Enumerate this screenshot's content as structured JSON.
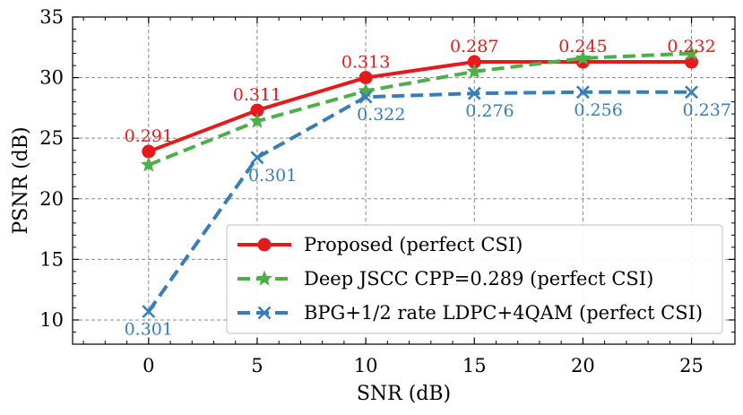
{
  "chart_data": {
    "type": "line",
    "title": "",
    "xlabel": "SNR (dB)",
    "ylabel": "PSNR (dB)",
    "xlim": [
      -3.5,
      27
    ],
    "ylim": [
      8,
      35
    ],
    "xticks": [
      0,
      5,
      10,
      15,
      20,
      25
    ],
    "yticks": [
      10,
      15,
      20,
      25,
      30,
      35
    ],
    "grid": true,
    "legend_position": "lower-right",
    "x": [
      0,
      5,
      10,
      15,
      20,
      25
    ],
    "series": [
      {
        "name": "Proposed (perfect CSI)",
        "color": "#e41a1c",
        "marker": "circle",
        "line_style": "solid",
        "values": [
          23.9,
          27.3,
          30.0,
          31.3,
          31.3,
          31.3
        ],
        "point_labels": [
          "0.291",
          "0.311",
          "0.313",
          "0.287",
          "0.245",
          "0.232"
        ],
        "label_placement": "above"
      },
      {
        "name": "Deep JSCC CPP=0.289 (perfect CSI)",
        "color": "#4daf4a",
        "marker": "star",
        "line_style": "dashed",
        "values": [
          22.8,
          26.4,
          28.9,
          30.5,
          31.6,
          32.0
        ],
        "point_labels": [],
        "label_placement": "none"
      },
      {
        "name": "BPG+1/2 rate LDPC+4QAM (perfect CSI)",
        "color": "#377eb8",
        "marker": "x",
        "line_style": "dashed",
        "values": [
          10.7,
          23.4,
          28.4,
          28.7,
          28.8,
          28.8
        ],
        "point_labels": [
          "0.301",
          "0.301",
          "0.322",
          "0.276",
          "0.256",
          "0.237"
        ],
        "label_placement": "below"
      }
    ]
  }
}
